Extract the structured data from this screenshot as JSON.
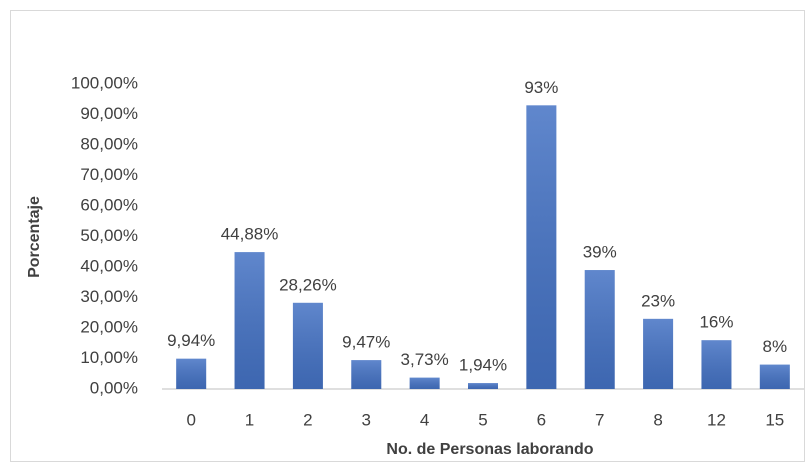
{
  "chart_data": {
    "type": "bar",
    "x_label": "No. de Personas laborando",
    "y_label": "Porcentaje",
    "categories": [
      "0",
      "1",
      "2",
      "3",
      "4",
      "5",
      "6",
      "7",
      "8",
      "12",
      "15"
    ],
    "values": [
      9.94,
      44.88,
      28.26,
      9.47,
      3.73,
      1.94,
      93,
      39,
      23,
      16,
      8
    ],
    "value_labels": [
      "9,94%",
      "44,88%",
      "28,26%",
      "9,47%",
      "3,73%",
      "1,94%",
      "93%",
      "39%",
      "23%",
      "16%",
      "8%"
    ],
    "color": "#4472c4",
    "ylim": [
      0,
      100
    ],
    "yticks": [
      {
        "value": 0,
        "label": "0,00%"
      },
      {
        "value": 10,
        "label": "10,00%"
      },
      {
        "value": 20,
        "label": "20,00%"
      },
      {
        "value": 30,
        "label": "30,00%"
      },
      {
        "value": 40,
        "label": "40,00%"
      },
      {
        "value": 50,
        "label": "50,00%"
      },
      {
        "value": 60,
        "label": "60,00%"
      },
      {
        "value": 70,
        "label": "70,00%"
      },
      {
        "value": 80,
        "label": "80,00%"
      },
      {
        "value": 90,
        "label": "90,00%"
      },
      {
        "value": 100,
        "label": "100,00%"
      }
    ],
    "grid": false
  }
}
